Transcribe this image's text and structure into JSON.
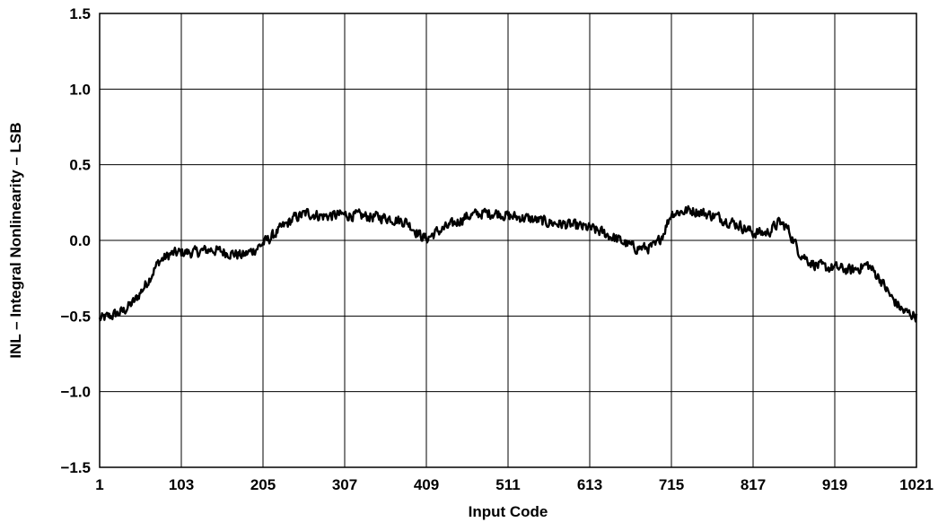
{
  "chart_data": {
    "type": "line",
    "title": "",
    "xlabel": "Input Code",
    "ylabel": "INL – Integral Nonlinearity – LSB",
    "xlim": [
      1,
      1021
    ],
    "ylim": [
      -1.5,
      1.5
    ],
    "x_ticks": [
      1,
      103,
      205,
      307,
      409,
      511,
      613,
      715,
      817,
      919,
      1021
    ],
    "x_tick_labels": [
      "1",
      "103",
      "205",
      "307",
      "409",
      "511",
      "613",
      "715",
      "817",
      "919",
      "1021"
    ],
    "y_ticks": [
      1.5,
      1.0,
      0.5,
      0.0,
      -0.5,
      -1.0,
      -1.5
    ],
    "y_tick_labels": [
      "1.5",
      "1.0",
      "0.5",
      "0.0",
      "−0.5",
      "−1.0",
      "−1.5"
    ],
    "grid": true,
    "line_color": "#000000",
    "series": [
      {
        "noise_amplitude": 0.05,
        "trend": {
          "x": [
            1,
            15,
            30,
            45,
            60,
            75,
            90,
            103,
            120,
            140,
            160,
            180,
            195,
            205,
            215,
            230,
            245,
            260,
            280,
            307,
            330,
            360,
            385,
            400,
            409,
            420,
            440,
            460,
            480,
            500,
            511,
            530,
            560,
            590,
            613,
            630,
            650,
            670,
            685,
            695,
            705,
            715,
            740,
            770,
            800,
            817,
            835,
            850,
            860,
            875,
            890,
            905,
            919,
            940,
            960,
            975,
            990,
            1005,
            1021
          ],
          "y": [
            -0.52,
            -0.5,
            -0.47,
            -0.4,
            -0.28,
            -0.14,
            -0.09,
            -0.08,
            -0.08,
            -0.06,
            -0.08,
            -0.1,
            -0.06,
            -0.02,
            0.02,
            0.09,
            0.15,
            0.18,
            0.16,
            0.17,
            0.16,
            0.15,
            0.12,
            0.04,
            0.01,
            0.05,
            0.1,
            0.16,
            0.18,
            0.18,
            0.16,
            0.15,
            0.12,
            0.1,
            0.08,
            0.05,
            0.0,
            -0.05,
            -0.05,
            -0.04,
            0.05,
            0.18,
            0.2,
            0.16,
            0.1,
            0.05,
            0.05,
            0.12,
            0.08,
            -0.08,
            -0.15,
            -0.18,
            -0.18,
            -0.2,
            -0.16,
            -0.25,
            -0.38,
            -0.47,
            -0.5
          ]
        }
      }
    ]
  }
}
